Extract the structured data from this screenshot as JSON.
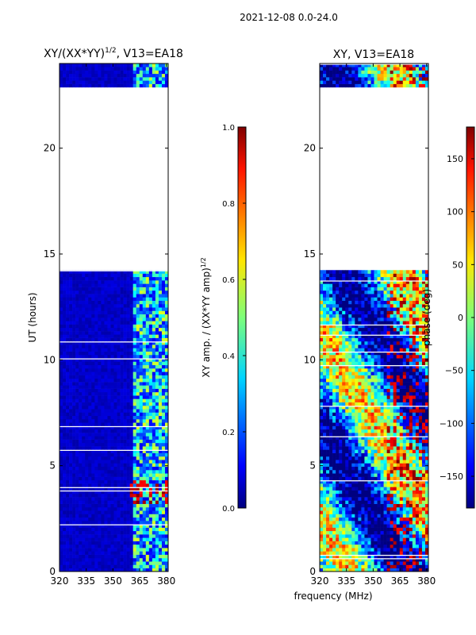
{
  "figure": {
    "suptitle": "2021-12-08 0.0-24.0",
    "xlabel": "frequency (MHz)"
  },
  "chart_data": [
    {
      "type": "heatmap",
      "title_main": "XY/(XX*YY)",
      "title_sup": "1/2",
      "title_tail": ", V13=EA18",
      "xlabel": "",
      "ylabel": "UT (hours)",
      "x_range": [
        320,
        381
      ],
      "y_range": [
        0,
        24
      ],
      "x_ticks": [
        320,
        335,
        350,
        365,
        380
      ],
      "x_tick_labels": [
        "320",
        "335",
        "350",
        "365",
        "380"
      ],
      "y_ticks": [
        0,
        5,
        10,
        15,
        20
      ],
      "y_tick_labels": [
        "0",
        "5",
        "10",
        "15",
        "20"
      ],
      "data_gap_hours": [
        14.3,
        22.8
      ],
      "colorbar": {
        "label_main": "XY amp. / (XX*YY amp)",
        "label_sup": "1/2",
        "range": [
          0.0,
          1.0
        ],
        "ticks": [
          0.0,
          0.2,
          0.4,
          0.6,
          0.8,
          1.0
        ],
        "tick_labels": [
          "0.0",
          "0.2",
          "0.4",
          "0.6",
          "0.8",
          "1.0"
        ],
        "colormap": "jet"
      }
    },
    {
      "type": "heatmap",
      "title": "XY, V13=EA18",
      "ylabel": "",
      "x_range": [
        320,
        381
      ],
      "y_range": [
        0,
        24
      ],
      "x_ticks": [
        320,
        335,
        350,
        365,
        380
      ],
      "x_tick_labels": [
        "320",
        "335",
        "350",
        "365",
        "380"
      ],
      "y_ticks": [
        0,
        5,
        10,
        15,
        20
      ],
      "y_tick_labels": [
        "0",
        "5",
        "10",
        "15",
        "20"
      ],
      "data_gap_hours": [
        14.3,
        22.8
      ],
      "colorbar": {
        "label": "phase (deg)",
        "range": [
          -180,
          180
        ],
        "ticks": [
          -150,
          -100,
          -50,
          0,
          50,
          100,
          150
        ],
        "tick_labels": [
          "−150",
          "−100",
          "−50",
          "0",
          "50",
          "100",
          "150"
        ],
        "colormap": "jet"
      }
    }
  ]
}
